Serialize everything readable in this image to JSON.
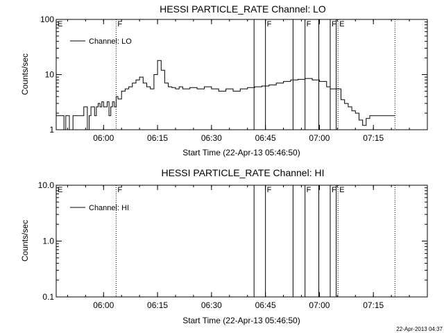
{
  "footer_timestamp": "22-Apr-2013 04:37",
  "chart_data": [
    {
      "type": "line",
      "title": "HESSI PARTICLE_RATE Channel: LO",
      "xlabel": "Start Time (22-Apr-13 05:46:50)",
      "ylabel": "Counts/sec",
      "yscale": "log",
      "ylim": [
        1,
        100
      ],
      "xlim": [
        "05:46:50",
        "07:30:00"
      ],
      "x_ticks": [
        "06:00",
        "06:15",
        "06:30",
        "06:45",
        "07:00",
        "07:15"
      ],
      "y_ticks": [
        "1",
        "10",
        "100"
      ],
      "legend": {
        "label": "Channel: LO",
        "position": "top-left"
      },
      "grid": false,
      "markers": [
        {
          "time": "05:46:50",
          "label": "E",
          "style": "none"
        },
        {
          "time": "06:03:30",
          "label": "F",
          "style": "dotted"
        },
        {
          "time": "06:41:50",
          "label": "",
          "style": "solid"
        },
        {
          "time": "06:45:00",
          "label": "F",
          "style": "solid"
        },
        {
          "time": "06:52:40",
          "label": "",
          "style": "solid"
        },
        {
          "time": "06:56:00",
          "label": "F",
          "style": "solid"
        },
        {
          "time": "06:59:50",
          "label": "",
          "style": "solid"
        },
        {
          "time": "07:03:00",
          "label": "F",
          "style": "solid"
        },
        {
          "time": "07:04:40",
          "label": "",
          "style": "solid"
        },
        {
          "time": "07:05:10",
          "label": "E",
          "style": "dotted"
        },
        {
          "time": "07:21:00",
          "label": "",
          "style": "dotted"
        }
      ],
      "series": [
        {
          "x": [
            "05:46:50",
            "05:48:00",
            "05:49:00",
            "05:49:30",
            "05:50:30",
            "05:51:30",
            "05:52:00",
            "05:53:00",
            "05:54:00",
            "05:54:30",
            "05:55:30",
            "05:56:00",
            "05:56:30",
            "05:57:30",
            "05:58:00",
            "05:58:30",
            "05:59:00",
            "05:59:30",
            "06:00:00",
            "06:00:30",
            "06:01:00",
            "06:01:30",
            "06:02:00",
            "06:02:30",
            "06:03:00",
            "06:03:30",
            "06:04:00",
            "06:05:00",
            "06:06:00",
            "06:07:00",
            "06:08:00",
            "06:09:00",
            "06:10:00",
            "06:11:00",
            "06:12:00",
            "06:13:00",
            "06:14:00",
            "06:15:00",
            "06:16:00",
            "06:17:00",
            "06:18:00",
            "06:19:00",
            "06:20:00",
            "06:21:00",
            "06:22:00",
            "06:24:00",
            "06:26:00",
            "06:28:00",
            "06:30:00",
            "06:32:00",
            "06:34:00",
            "06:36:00",
            "06:38:00",
            "06:40:00",
            "06:42:00",
            "06:44:00",
            "06:46:00",
            "06:48:00",
            "06:50:00",
            "06:52:00",
            "06:54:00",
            "06:56:00",
            "06:58:00",
            "07:00:00",
            "07:02:00",
            "07:03:00",
            "07:04:00",
            "07:05:00",
            "07:06:00",
            "07:07:00",
            "07:08:00",
            "07:09:00",
            "07:10:00",
            "07:11:00",
            "07:12:00",
            "07:13:00",
            "07:14:00",
            "07:15:00",
            "07:16:00",
            "07:17:00",
            "07:18:00",
            "07:19:00",
            "07:20:00",
            "07:21:00"
          ],
          "y": [
            1.8,
            1.8,
            1.0,
            1.8,
            1.0,
            1.8,
            1.8,
            1.8,
            1.8,
            2.6,
            1.0,
            1.8,
            2.6,
            1.8,
            2.6,
            3.0,
            2.6,
            3.2,
            2.6,
            2.6,
            3.2,
            1.8,
            2.6,
            3.2,
            2.6,
            4.0,
            3.6,
            5.0,
            5.5,
            6.0,
            7.0,
            8.0,
            9.0,
            7.0,
            6.0,
            5.5,
            10.0,
            18.0,
            12.0,
            7.0,
            6.0,
            5.8,
            5.5,
            6.0,
            5.5,
            5.8,
            5.5,
            6.0,
            5.5,
            5.0,
            5.5,
            5.0,
            5.5,
            5.8,
            6.0,
            6.2,
            6.5,
            7.0,
            7.5,
            8.0,
            8.2,
            8.5,
            8.0,
            7.5,
            6.0,
            5.5,
            5.5,
            5.5,
            3.5,
            3.0,
            2.6,
            2.2,
            2.0,
            1.5,
            1.2,
            1.6,
            1.8,
            1.8,
            1.8,
            1.8,
            1.8,
            1.8,
            1.8,
            1.8
          ]
        }
      ]
    },
    {
      "type": "line",
      "title": "HESSI PARTICLE_RATE Channel: HI",
      "xlabel": "Start Time (22-Apr-13 05:46:50)",
      "ylabel": "Counts/sec",
      "yscale": "log",
      "ylim": [
        0.1,
        10.0
      ],
      "xlim": [
        "05:46:50",
        "07:30:00"
      ],
      "x_ticks": [
        "06:00",
        "06:15",
        "06:30",
        "06:45",
        "07:00",
        "07:15"
      ],
      "y_ticks": [
        "0.1",
        "1.0",
        "10.0"
      ],
      "legend": {
        "label": "Channel: HI",
        "position": "top-left"
      },
      "grid": false,
      "markers": [
        {
          "time": "05:46:50",
          "label": "E",
          "style": "none"
        },
        {
          "time": "06:03:30",
          "label": "F",
          "style": "dotted"
        },
        {
          "time": "06:41:50",
          "label": "",
          "style": "solid"
        },
        {
          "time": "06:45:00",
          "label": "F",
          "style": "solid"
        },
        {
          "time": "06:52:40",
          "label": "",
          "style": "solid"
        },
        {
          "time": "06:56:00",
          "label": "F",
          "style": "solid"
        },
        {
          "time": "06:59:50",
          "label": "",
          "style": "solid"
        },
        {
          "time": "07:03:00",
          "label": "F",
          "style": "solid"
        },
        {
          "time": "07:04:40",
          "label": "",
          "style": "solid"
        },
        {
          "time": "07:05:10",
          "label": "E",
          "style": "dotted"
        },
        {
          "time": "07:21:00",
          "label": "",
          "style": "dotted"
        }
      ],
      "series": [
        {
          "x": [],
          "y": []
        }
      ]
    }
  ]
}
